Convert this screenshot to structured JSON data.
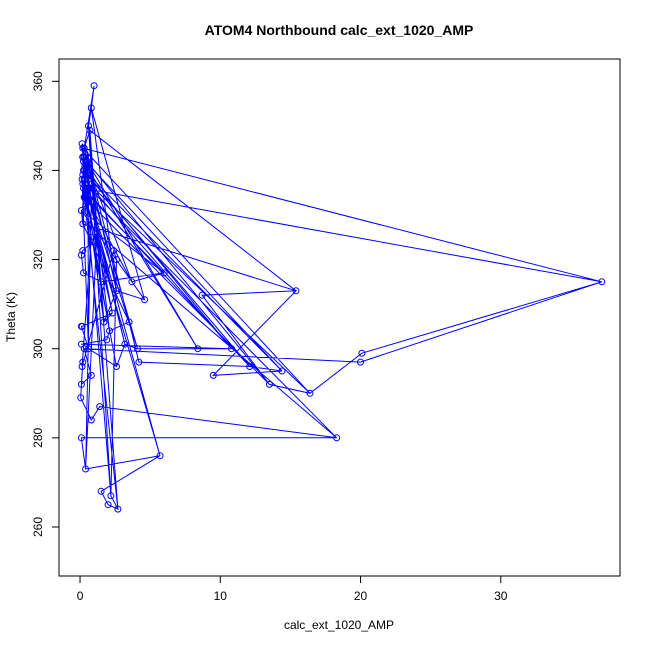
{
  "chart_data": {
    "type": "line",
    "title": "ATOM4 Northbound calc_ext_1020_AMP",
    "xlabel": "calc_ext_1020_AMP",
    "ylabel": "Theta (K)",
    "xlim": [
      -1.5,
      38.5
    ],
    "ylim": [
      249,
      365
    ],
    "xticks": [
      0,
      10,
      20,
      30
    ],
    "yticks": [
      260,
      280,
      300,
      320,
      340,
      360
    ],
    "grid": false,
    "color": "#0000ff",
    "marker": "open-circle",
    "points": [
      [
        0.2,
        343
      ],
      [
        0.35,
        341
      ],
      [
        0.15,
        338
      ],
      [
        0.25,
        336
      ],
      [
        0.3,
        334
      ],
      [
        0.4,
        342
      ],
      [
        0.5,
        339
      ],
      [
        0.2,
        345
      ],
      [
        0.35,
        337
      ],
      [
        0.6,
        333
      ],
      [
        0.1,
        331
      ],
      [
        0.2,
        328
      ],
      [
        0.3,
        340
      ],
      [
        0.45,
        336
      ],
      [
        0.25,
        342
      ],
      [
        0.55,
        344
      ],
      [
        0.15,
        346
      ],
      [
        0.4,
        335
      ],
      [
        0.3,
        338
      ],
      [
        0.2,
        343
      ],
      [
        1.0,
        359
      ],
      [
        0.8,
        354
      ],
      [
        0.6,
        350
      ],
      [
        0.7,
        349
      ],
      [
        0.3,
        345
      ],
      [
        0.5,
        342
      ],
      [
        0.8,
        333
      ],
      [
        1.2,
        326
      ],
      [
        0.9,
        324
      ],
      [
        0.2,
        322
      ],
      [
        0.1,
        321
      ],
      [
        0.25,
        317
      ],
      [
        1.5,
        315
      ],
      [
        6.0,
        317
      ],
      [
        3.7,
        315
      ],
      [
        4.6,
        311
      ],
      [
        2.6,
        313
      ],
      [
        1.7,
        306
      ],
      [
        2.3,
        308
      ],
      [
        0.15,
        305
      ],
      [
        0.1,
        305
      ],
      [
        0.6,
        300
      ],
      [
        2.6,
        296
      ],
      [
        3.2,
        301
      ],
      [
        4.1,
        300
      ],
      [
        8.4,
        300
      ],
      [
        10.8,
        300
      ],
      [
        0.1,
        301
      ],
      [
        1.9,
        302
      ],
      [
        2.1,
        304
      ],
      [
        3.5,
        306
      ],
      [
        4.2,
        297
      ],
      [
        12.1,
        296
      ],
      [
        14.4,
        295
      ],
      [
        9.5,
        294
      ],
      [
        15.4,
        313
      ],
      [
        8.7,
        312
      ],
      [
        13.5,
        292
      ],
      [
        16.4,
        290
      ],
      [
        20.1,
        299
      ],
      [
        37.2,
        315
      ],
      [
        20.0,
        297
      ],
      [
        0.3,
        300
      ],
      [
        0.8,
        294
      ],
      [
        0.1,
        292
      ],
      [
        0.2,
        297
      ],
      [
        0.05,
        289
      ],
      [
        0.8,
        284
      ],
      [
        1.4,
        287
      ],
      [
        18.3,
        280
      ],
      [
        0.1,
        280
      ],
      [
        0.4,
        273
      ],
      [
        5.7,
        276
      ],
      [
        1.5,
        268
      ],
      [
        2.0,
        265
      ],
      [
        2.7,
        264
      ],
      [
        2.2,
        267
      ],
      [
        2.6,
        320
      ],
      [
        2.4,
        322
      ],
      [
        0.15,
        296
      ],
      [
        0.8,
        325
      ],
      [
        0.35,
        334
      ],
      [
        0.2,
        337
      ],
      [
        0.6,
        338
      ],
      [
        0.25,
        340
      ],
      [
        0.5,
        341
      ],
      [
        0.7,
        336
      ],
      [
        0.4,
        332
      ],
      [
        0.3,
        343
      ],
      [
        0.2,
        339
      ]
    ],
    "path": [
      0,
      1,
      2,
      3,
      4,
      5,
      6,
      7,
      8,
      9,
      10,
      11,
      12,
      13,
      14,
      15,
      16,
      17,
      18,
      19,
      20,
      21,
      22,
      23,
      24,
      25,
      26,
      27,
      28,
      29,
      30,
      31,
      32,
      33,
      34,
      35,
      36,
      37,
      38,
      39,
      40,
      41,
      42,
      43,
      44,
      45,
      46,
      47,
      48,
      49,
      50,
      51,
      52,
      53,
      54,
      55,
      56,
      57,
      58,
      59,
      60,
      61,
      62,
      63,
      64,
      65,
      66,
      67,
      68,
      69,
      70,
      71,
      72,
      73,
      74,
      75,
      76,
      77,
      78,
      79,
      80,
      81,
      82,
      83,
      84,
      85,
      86,
      87,
      88,
      89,
      14,
      45,
      25,
      57,
      9,
      34,
      5,
      53,
      12,
      46,
      18,
      58,
      7,
      60,
      3,
      52,
      6,
      44,
      13,
      43,
      26,
      71,
      27,
      69,
      8,
      72,
      4,
      75,
      22,
      76,
      19,
      38,
      2,
      41,
      15,
      49,
      17,
      33,
      10,
      35,
      21,
      36,
      24,
      50,
      11,
      55,
      23,
      37,
      28,
      42
    ]
  }
}
